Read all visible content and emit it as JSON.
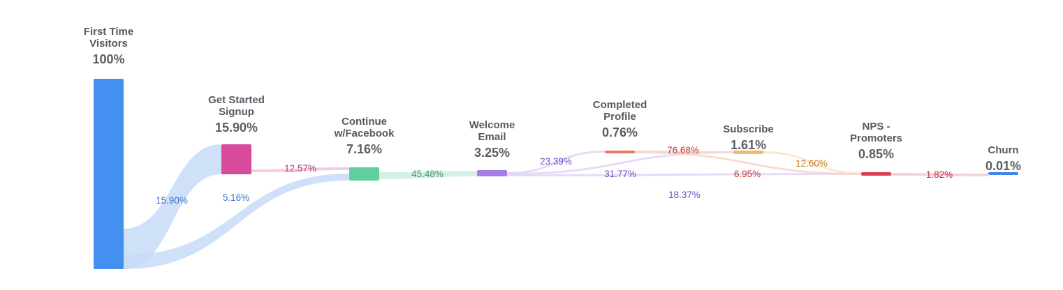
{
  "chart_data": {
    "type": "sankey",
    "stages": [
      {
        "key": "visitors",
        "name_lines": [
          "First Time",
          "Visitors"
        ],
        "value_label": "100%",
        "value": 100,
        "color": "#4390f0"
      },
      {
        "key": "signup",
        "name_lines": [
          "Get Started",
          "Signup"
        ],
        "value_label": "15.90%",
        "value": 15.9,
        "color": "#d84b9c"
      },
      {
        "key": "facebook",
        "name_lines": [
          "Continue",
          "w/Facebook"
        ],
        "value_label": "7.16%",
        "value": 7.16,
        "color": "#5fcf9d"
      },
      {
        "key": "welcome",
        "name_lines": [
          "Welcome",
          "Email"
        ],
        "value_label": "3.25%",
        "value": 3.25,
        "color": "#a57ce8"
      },
      {
        "key": "profile",
        "name_lines": [
          "Completed",
          "Profile"
        ],
        "value_label": "0.76%",
        "value": 0.76,
        "color": "#ef7768"
      },
      {
        "key": "subscribe",
        "name_lines": [
          "Subscribe"
        ],
        "value_label": "1.61%",
        "value": 1.61,
        "color": "#f2b86b"
      },
      {
        "key": "nps",
        "name_lines": [
          "NPS -",
          "Promoters"
        ],
        "value_label": "0.85%",
        "value": 0.85,
        "color": "#de3e54"
      },
      {
        "key": "churn",
        "name_lines": [
          "Churn"
        ],
        "value_label": "0.01%",
        "value": 0.01,
        "color": "#3f86e8"
      }
    ],
    "flows": [
      {
        "from": "visitors",
        "to": "signup",
        "label": "15.90%",
        "value": 15.9,
        "color": "#c7dbf8",
        "label_color": "#3a6fc4"
      },
      {
        "from": "visitors",
        "to": "facebook",
        "label": "5.16%",
        "value": 5.16,
        "color": "#c7dbf8",
        "label_color": "#3a6fc4"
      },
      {
        "from": "signup",
        "to": "facebook",
        "label": "12.57%",
        "value": 12.57,
        "color": "#f3c3dc",
        "label_color": "#b23a7b"
      },
      {
        "from": "facebook",
        "to": "welcome",
        "label": "45.48%",
        "value": 45.48,
        "color": "#cdeedd",
        "label_color": "#3e9a6c"
      },
      {
        "from": "welcome",
        "to": "profile",
        "label": "23.39%",
        "value": 23.39,
        "color": "#e2d5f7",
        "label_color": "#7547c7"
      },
      {
        "from": "welcome",
        "to": "subscribe",
        "label": "31.77%",
        "value": 31.77,
        "color": "#e2d5f7",
        "label_color": "#7547c7"
      },
      {
        "from": "welcome",
        "to": "nps",
        "label": "18.37%",
        "value": 18.37,
        "color": "#e2d5f7",
        "label_color": "#7547c7"
      },
      {
        "from": "profile",
        "to": "subscribe",
        "label": "76.68%",
        "value": 76.68,
        "color": "#f7d6cf",
        "label_color": "#c4382c"
      },
      {
        "from": "profile",
        "to": "nps",
        "label": "6.95%",
        "value": 6.95,
        "color": "#f7d6cf",
        "label_color": "#c4382c"
      },
      {
        "from": "subscribe",
        "to": "nps",
        "label": "12.60%",
        "value": 12.6,
        "color": "#f8e3c4",
        "label_color": "#c47b1a"
      },
      {
        "from": "nps",
        "to": "churn",
        "label": "1.82%",
        "value": 1.82,
        "color": "#f6c9d1",
        "label_color": "#c4283f"
      }
    ]
  }
}
